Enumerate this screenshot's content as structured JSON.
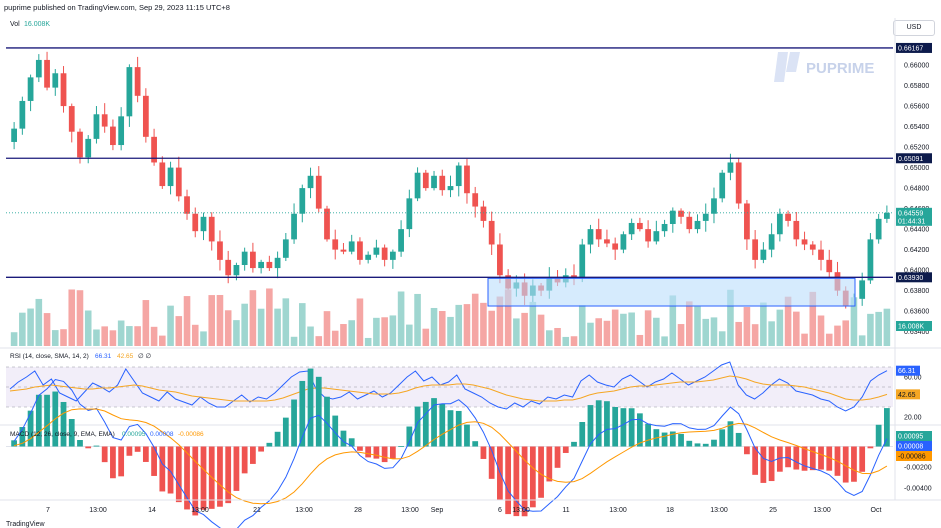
{
  "header": {
    "published": "puprime published on TradingView.com, Sep 29, 2023 11:15 UTC+8",
    "currency": "USD",
    "vol_label": "Vol",
    "vol_value": "16.008K"
  },
  "watermark": {
    "text": "PUPRIME"
  },
  "colors": {
    "up": "#26a69a",
    "down": "#ef5350",
    "line": "#1a1a7a",
    "rsi_line": "#2962ff",
    "rsi_sma": "#f5a623",
    "rsi_band": "#7e57c2",
    "macd_line": "#2962ff",
    "signal_line": "#ff9800",
    "box_fill": "#bbdefb",
    "box_stroke": "#2962ff"
  },
  "chart_data": [
    {
      "type": "candlestick",
      "title": "",
      "y_ticks": [
        "0.66000",
        "0.65800",
        "0.65600",
        "0.65400",
        "0.65200",
        "0.65000",
        "0.64800",
        "0.64600",
        "0.64400",
        "0.64200",
        "0.64000",
        "0.63800",
        "0.63600",
        "0.63400"
      ],
      "ylim": [
        0.6326,
        0.6642
      ],
      "x_tick_labels": [
        "7",
        "13:00",
        "14",
        "13:00",
        "21",
        "13:00",
        "28",
        "13:00",
        "Sep",
        "6",
        "13:00",
        "11",
        "13:00",
        "18",
        "13:00",
        "25",
        "13:00",
        "Oct"
      ],
      "horizontal_levels": [
        {
          "value": 0.66167,
          "label": "0.66167"
        },
        {
          "value": 0.65091,
          "label": "0.65091"
        },
        {
          "value": 0.6393,
          "label": "0.63930"
        }
      ],
      "last_price": {
        "value": 0.64559,
        "label": "0.64559",
        "countdown": "01:44:31"
      },
      "support_zone": {
        "low": 0.6365,
        "high": 0.6392
      },
      "closes": [
        0.6538,
        0.6565,
        0.6588,
        0.6605,
        0.6578,
        0.6592,
        0.656,
        0.6535,
        0.651,
        0.6528,
        0.6552,
        0.654,
        0.6522,
        0.655,
        0.6598,
        0.657,
        0.653,
        0.6505,
        0.6482,
        0.65,
        0.6472,
        0.6455,
        0.6438,
        0.6452,
        0.6428,
        0.641,
        0.6395,
        0.6405,
        0.6418,
        0.6402,
        0.6408,
        0.6402,
        0.6412,
        0.643,
        0.6455,
        0.648,
        0.6492,
        0.646,
        0.643,
        0.642,
        0.6418,
        0.6428,
        0.641,
        0.6415,
        0.6422,
        0.641,
        0.6418,
        0.644,
        0.647,
        0.6495,
        0.648,
        0.6492,
        0.6478,
        0.6482,
        0.6502,
        0.6475,
        0.6462,
        0.6448,
        0.6425,
        0.6395,
        0.6382,
        0.6388,
        0.6375,
        0.6385,
        0.638,
        0.6392,
        0.6388,
        0.6395,
        0.6392,
        0.6425,
        0.644,
        0.643,
        0.6426,
        0.642,
        0.6435,
        0.6446,
        0.644,
        0.6428,
        0.6438,
        0.6445,
        0.6458,
        0.6452,
        0.644,
        0.6448,
        0.6455,
        0.647,
        0.6495,
        0.6505,
        0.6465,
        0.643,
        0.641,
        0.642,
        0.6435,
        0.6455,
        0.6448,
        0.643,
        0.6425,
        0.642,
        0.641,
        0.6398,
        0.638,
        0.6365,
        0.6372,
        0.639,
        0.643,
        0.645,
        0.64559
      ],
      "volume_max_label": "16.008K"
    },
    {
      "type": "line",
      "title": "RSI (14, close, SMA, 14, 2)",
      "legend_values": [
        "66.31",
        "42.65"
      ],
      "y_ticks": [
        "60.00",
        "20.00"
      ],
      "ylim": [
        15,
        85
      ],
      "band": [
        30,
        70
      ],
      "series": [
        {
          "name": "RSI",
          "last": 66.31,
          "values": [
            48,
            55,
            60,
            66,
            52,
            58,
            44,
            40,
            36,
            45,
            54,
            50,
            45,
            52,
            68,
            56,
            44,
            40,
            36,
            45,
            38,
            35,
            32,
            40,
            34,
            30,
            30,
            36,
            42,
            35,
            40,
            38,
            44,
            52,
            60,
            65,
            66,
            48,
            40,
            38,
            40,
            45,
            38,
            42,
            46,
            40,
            44,
            52,
            60,
            66,
            56,
            60,
            52,
            55,
            62,
            48,
            44,
            40,
            34,
            30,
            28,
            34,
            30,
            36,
            33,
            40,
            38,
            42,
            40,
            56,
            62,
            55,
            52,
            50,
            58,
            62,
            56,
            50,
            55,
            58,
            64,
            58,
            52,
            56,
            60,
            66,
            72,
            75,
            52,
            42,
            38,
            44,
            52,
            58,
            54,
            46,
            44,
            42,
            38,
            36,
            30,
            26,
            30,
            40,
            56,
            62,
            66.31
          ]
        },
        {
          "name": "RSI-based MA",
          "last": 42.65,
          "values": [
            46,
            47,
            48,
            50,
            51,
            52,
            51,
            50,
            49,
            48,
            48,
            49,
            49,
            50,
            51,
            52,
            51,
            49,
            47,
            46,
            45,
            43,
            41,
            40,
            39,
            38,
            37,
            36,
            36,
            36,
            36,
            36,
            37,
            39,
            42,
            45,
            48,
            49,
            49,
            48,
            47,
            46,
            45,
            44,
            43,
            43,
            43,
            44,
            46,
            49,
            51,
            52,
            52,
            52,
            53,
            53,
            52,
            50,
            48,
            45,
            42,
            40,
            38,
            37,
            36,
            36,
            36,
            37,
            37,
            39,
            42,
            44,
            45,
            46,
            48,
            50,
            51,
            51,
            52,
            53,
            54,
            55,
            55,
            55,
            56,
            57,
            59,
            61,
            60,
            58,
            55,
            53,
            52,
            52,
            52,
            51,
            50,
            48,
            46,
            44,
            41,
            38,
            37,
            37,
            38,
            40,
            42.65
          ]
        }
      ]
    },
    {
      "type": "bar",
      "title": "MACD (12, 26, close, 9, EMA, EMA)",
      "legend_values": [
        "0.00095",
        "0.00008",
        "-0.00086"
      ],
      "y_ticks": [
        "0.00000",
        "-0.00200",
        "-0.00400"
      ],
      "ylim": [
        -0.0048,
        0.0016
      ],
      "series": [
        {
          "name": "Histogram",
          "last": 0.00095
        },
        {
          "name": "MACD",
          "last": 8e-05
        },
        {
          "name": "Signal",
          "last": -0.00086
        }
      ]
    }
  ],
  "pane_labels": {
    "rsi_title": "RSI (14, close, SMA, 14, 2)",
    "rsi_v1": "66.31",
    "rsi_v2": "42.65",
    "rsi_v3": "∅ ∅",
    "macd_title": "MACD (12, 26, close, 9, EMA, EMA)",
    "macd_v1": "0.00095",
    "macd_v2": "0.00008",
    "macd_v3": "-0.00086"
  },
  "footer": {
    "brand": "TradingView"
  }
}
